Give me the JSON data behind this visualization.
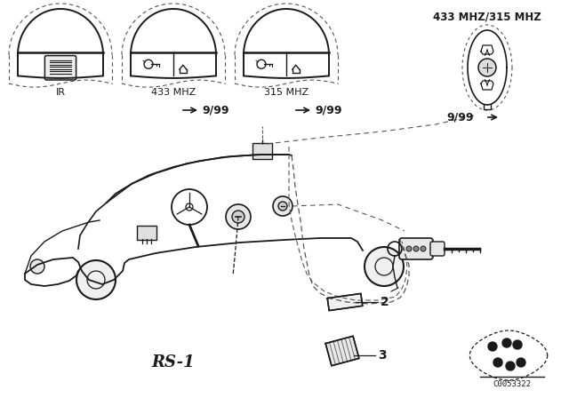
{
  "bg_color": "#ffffff",
  "line_color": "#1a1a1a",
  "dash_color": "#555555",
  "diagram_code": "C0053322",
  "labels": {
    "ir": "IR",
    "freq1": "433 MHZ",
    "freq2": "315 MHZ",
    "freq3": "433 MHZ/315 MHZ",
    "date1": "9/99",
    "date2": "9/99",
    "date3": "9/99",
    "rs1": "RS-1",
    "num2": "2",
    "num3": "3"
  }
}
